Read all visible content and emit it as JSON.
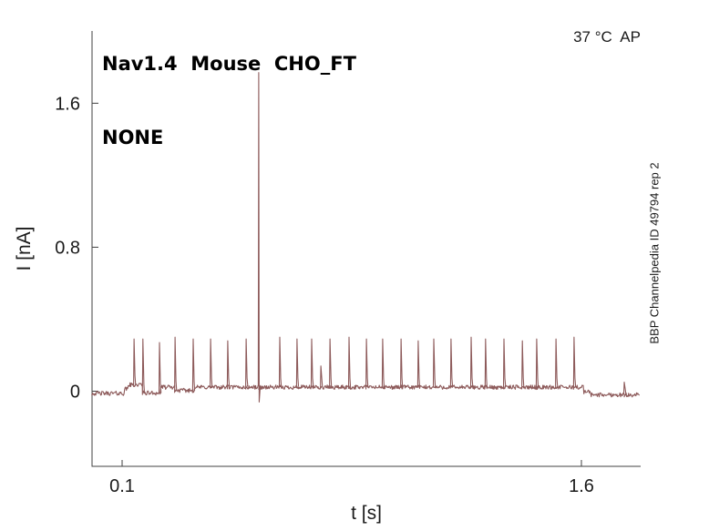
{
  "figure": {
    "title_line1": "Nav1.4  Mouse  CHO_FT",
    "title_line2": "NONE",
    "condition_annotation": "37 °C  AP",
    "side_annotation": "BBP Channelpedia ID 49794 rep 2"
  },
  "chart_data": {
    "type": "line",
    "title": "Nav1.4  Mouse  CHO_FT NONE",
    "top_right_annotation": "37 °C  AP",
    "right_annotation": "BBP Channelpedia ID 49794 rep 2",
    "xlabel": "t [s]",
    "ylabel": "I [nA]",
    "xlim": [
      0,
      1.79
    ],
    "ylim": [
      -0.42,
      2.0
    ],
    "xticks": [
      0.1,
      1.6
    ],
    "xtick_labels": [
      "0.1",
      "1.6"
    ],
    "yticks": [
      0,
      0.8,
      1.6
    ],
    "ytick_labels": [
      "0",
      "0.8",
      "1.6"
    ],
    "grid": false,
    "legend_position": "none",
    "line_color": "#8d5a5a",
    "axis_color": "#404040",
    "text_color": "#1a1a1a",
    "noise_amplitude_na": 0.012,
    "spike_undershoot_na": -0.06,
    "baseline_segments": [
      [
        0.0,
        0.107,
        -0.012
      ],
      [
        0.107,
        0.12,
        0.012
      ],
      [
        0.12,
        0.168,
        0.035
      ],
      [
        0.168,
        0.225,
        -0.01
      ],
      [
        0.225,
        0.273,
        0.022
      ],
      [
        0.273,
        0.335,
        0.004
      ],
      [
        0.335,
        1.608,
        0.022
      ],
      [
        1.608,
        1.632,
        -0.004
      ],
      [
        1.632,
        1.79,
        -0.02
      ]
    ],
    "spikes": {
      "times": [
        0.139,
        0.168,
        0.222,
        0.273,
        0.332,
        0.389,
        0.445,
        0.505,
        0.546,
        0.615,
        0.671,
        0.719,
        0.749,
        0.779,
        0.841,
        0.898,
        0.951,
        1.011,
        1.067,
        1.118,
        1.174,
        1.24,
        1.287,
        1.347,
        1.407,
        1.454,
        1.517,
        1.576,
        1.74
      ],
      "peaks_na": [
        0.29,
        0.29,
        0.27,
        0.3,
        0.29,
        0.29,
        0.28,
        0.29,
        1.77,
        0.3,
        0.29,
        0.29,
        0.14,
        0.29,
        0.3,
        0.29,
        0.29,
        0.29,
        0.28,
        0.29,
        0.29,
        0.3,
        0.29,
        0.29,
        0.28,
        0.29,
        0.29,
        0.3,
        0.05
      ]
    }
  }
}
